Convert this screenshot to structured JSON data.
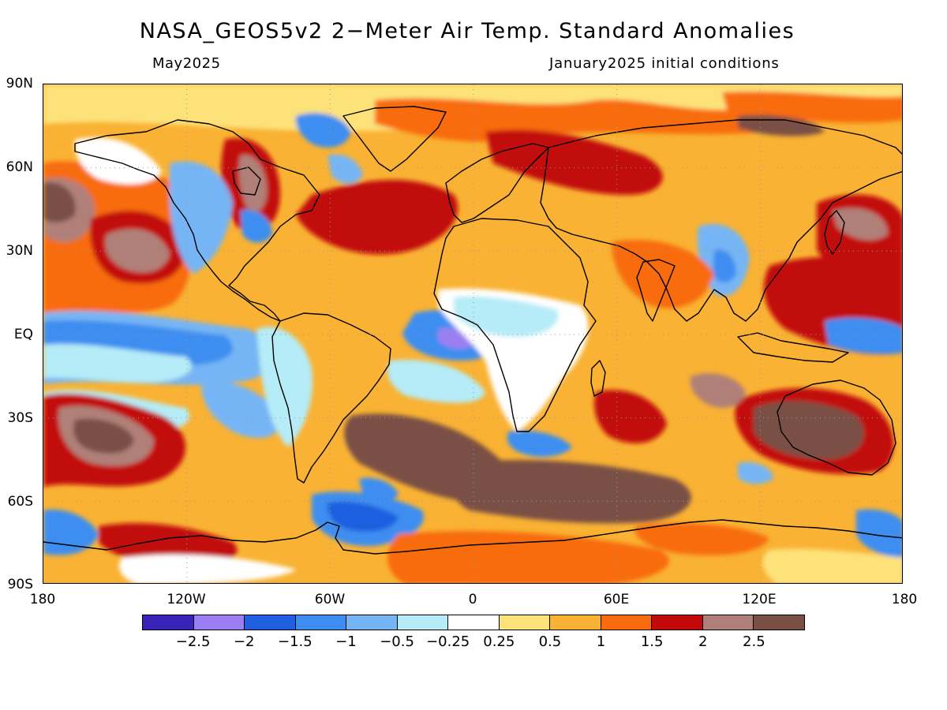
{
  "header": {
    "title": "NASA_GEOS5v2 2−Meter Air Temp. Standard Anomalies",
    "valid_month": "May2025",
    "init_conditions": "January2025 initial conditions"
  },
  "axes": {
    "lat_labels": [
      "90N",
      "60N",
      "30N",
      "EQ",
      "30S",
      "60S",
      "90S"
    ],
    "lon_labels": [
      "180",
      "120W",
      "60W",
      "0",
      "60E",
      "120E",
      "180"
    ]
  },
  "legend": {
    "colors": [
      "#3a23b8",
      "#9b7ff2",
      "#1f5fe0",
      "#3d8ef0",
      "#76b5f5",
      "#b5ecf7",
      "#ffffff",
      "#fde27a",
      "#f9b233",
      "#f86c0f",
      "#c20a0a",
      "#b08078",
      "#7a5045"
    ],
    "labels": [
      "−2.5",
      "−2",
      "−1.5",
      "−1",
      "−0.5",
      "−0.25",
      "0.25",
      "0.5",
      "1",
      "1.5",
      "2",
      "2.5"
    ]
  },
  "map": {
    "projection": "cylindrical equidistant",
    "field": "2-meter air temperature standard anomaly",
    "grid": "dotted lines every 60° longitude and 30° latitude"
  }
}
